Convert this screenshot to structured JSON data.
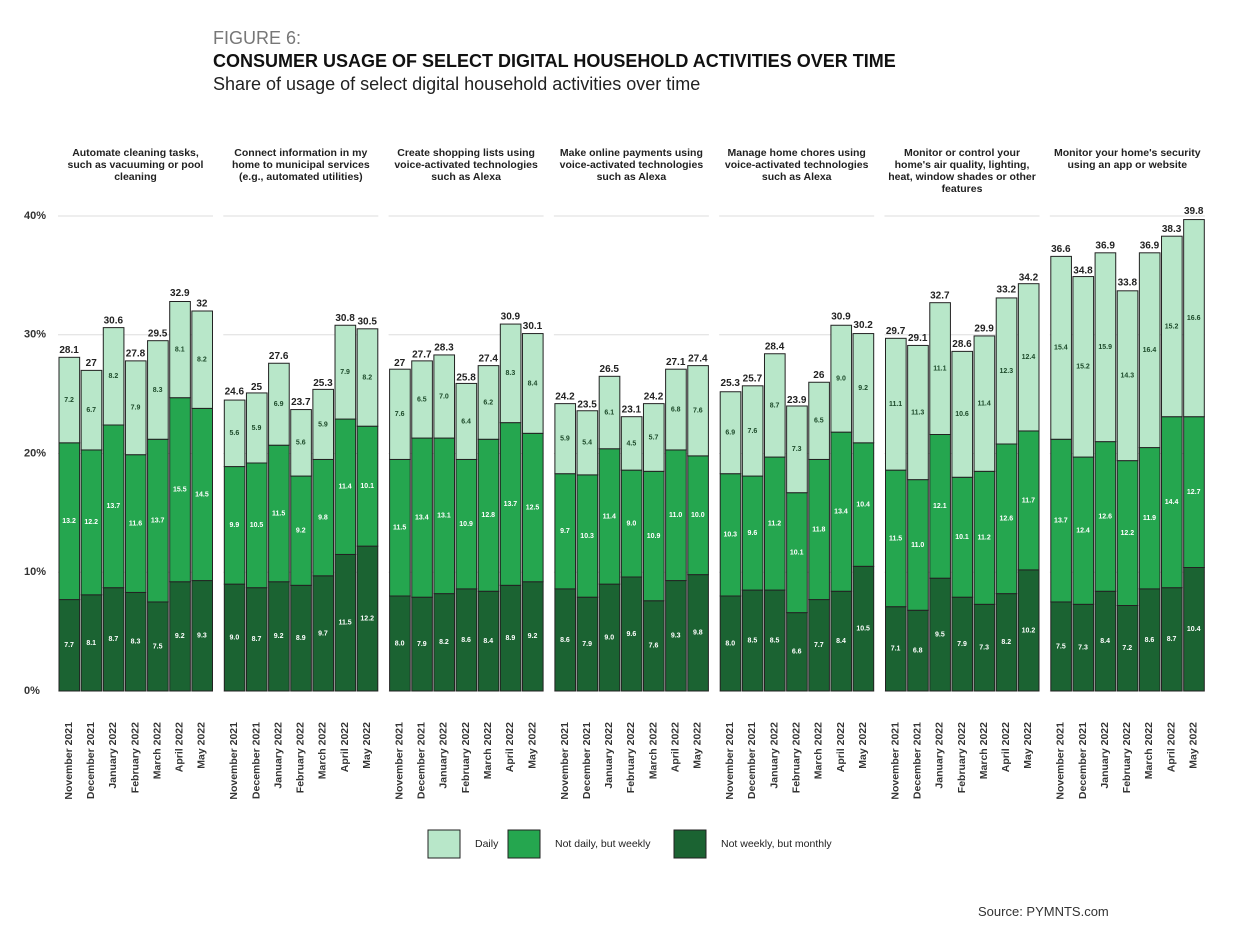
{
  "header": {
    "figure": "FIGURE 6:",
    "title": "CONSUMER USAGE OF SELECT DIGITAL HOUSEHOLD ACTIVITIES OVER TIME",
    "subtitle": "Share of usage of select digital household activities over time"
  },
  "chart_data": {
    "type": "bar",
    "stacked": true,
    "ylim": [
      0,
      40
    ],
    "yticks": [
      {
        "value": 0,
        "label": "0%"
      },
      {
        "value": 10,
        "label": "10%"
      },
      {
        "value": 20,
        "label": "20%"
      },
      {
        "value": 30,
        "label": "30%"
      },
      {
        "value": 40,
        "label": "40%"
      }
    ],
    "grid": true,
    "categories": [
      "November 2021",
      "December 2021",
      "January 2022",
      "February 2022",
      "March 2022",
      "April 2022",
      "May 2022"
    ],
    "series": [
      {
        "name": "Not weekly, but monthly",
        "color": "#1b6332"
      },
      {
        "name": "Not daily, but weekly",
        "color": "#25a64f"
      },
      {
        "name": "Daily",
        "color": "#b8e7c9"
      }
    ],
    "legend_order": [
      2,
      1,
      0
    ],
    "panels": [
      {
        "title": "Automate cleaning tasks, such as vacuuming or pool cleaning",
        "series": [
          {
            "values": [
              7.7,
              8.1,
              8.7,
              8.3,
              7.5,
              9.2,
              9.3
            ],
            "value_labels": [
              "7.7",
              "8.1",
              "8.7",
              "8.3",
              "7.5",
              "9.2",
              "9.3"
            ]
          },
          {
            "values": [
              13.2,
              12.2,
              13.7,
              11.6,
              13.7,
              15.5,
              14.5
            ],
            "value_labels": [
              "13.2",
              "12.2",
              "13.7",
              "11.6",
              "13.7",
              "15.5",
              "14.5"
            ]
          },
          {
            "values": [
              7.2,
              6.7,
              8.2,
              7.9,
              8.3,
              8.1,
              8.2
            ],
            "value_labels": [
              "7.2",
              "6.7",
              "8.2",
              "7.9",
              "8.3",
              "8.1",
              "8.2"
            ]
          }
        ],
        "totals": [
          28.1,
          27,
          30.6,
          27.8,
          29.5,
          32.9,
          32
        ]
      },
      {
        "title": "Connect information in my home to municipal services (e.g., automated utilities)",
        "series": [
          {
            "values": [
              9.0,
              8.7,
              9.2,
              8.9,
              9.7,
              11.5,
              12.2
            ],
            "value_labels": [
              "9.0",
              "8.7",
              "9.2",
              "8.9",
              "9.7",
              "11.5",
              "12.2"
            ]
          },
          {
            "values": [
              9.9,
              10.5,
              11.5,
              9.2,
              9.8,
              11.4,
              10.1
            ],
            "value_labels": [
              "9.9",
              "10.5",
              "11.5",
              "9.2",
              "9.8",
              "11.4",
              "10.1"
            ]
          },
          {
            "values": [
              5.6,
              5.9,
              6.9,
              5.6,
              5.9,
              7.9,
              8.2
            ],
            "value_labels": [
              "5.6",
              "5.9",
              "6.9",
              "5.6",
              "5.9",
              "7.9",
              "8.2"
            ]
          }
        ],
        "totals": [
          24.6,
          25,
          27.6,
          23.7,
          25.3,
          30.8,
          30.5
        ]
      },
      {
        "title": "Create shopping lists using voice-activated technologies such as Alexa",
        "series": [
          {
            "values": [
              8.0,
              7.9,
              8.2,
              8.6,
              8.4,
              8.9,
              9.2
            ],
            "value_labels": [
              "8.0",
              "7.9",
              "8.2",
              "8.6",
              "8.4",
              "8.9",
              "9.2"
            ]
          },
          {
            "values": [
              11.5,
              13.4,
              13.1,
              10.9,
              12.8,
              13.7,
              12.5
            ],
            "value_labels": [
              "11.5",
              "13.4",
              "13.1",
              "10.9",
              "12.8",
              "13.7",
              "12.5"
            ]
          },
          {
            "values": [
              7.6,
              6.5,
              7.0,
              6.4,
              6.2,
              8.3,
              8.4
            ],
            "value_labels": [
              "7.6",
              "6.5",
              "7.0",
              "6.4",
              "6.2",
              "8.3",
              "8.4"
            ]
          }
        ],
        "totals": [
          27,
          27.7,
          28.3,
          25.8,
          27.4,
          30.9,
          30.1
        ]
      },
      {
        "title": "Make online payments using voice-activated technologies such as Alexa",
        "series": [
          {
            "values": [
              8.6,
              7.9,
              9.0,
              9.6,
              7.6,
              9.3,
              9.8
            ],
            "value_labels": [
              "8.6",
              "7.9",
              "9.0",
              "9.6",
              "7.6",
              "9.3",
              "9.8"
            ]
          },
          {
            "values": [
              9.7,
              10.3,
              11.4,
              9.0,
              10.9,
              11.0,
              10.0
            ],
            "value_labels": [
              "9.7",
              "10.3",
              "11.4",
              "9.0",
              "10.9",
              "11.0",
              "10.0"
            ]
          },
          {
            "values": [
              5.9,
              5.4,
              6.1,
              4.5,
              5.7,
              6.8,
              7.6
            ],
            "value_labels": [
              "5.9",
              "5.4",
              "6.1",
              "4.5",
              "5.7",
              "6.8",
              "7.6"
            ]
          }
        ],
        "totals": [
          24.2,
          23.5,
          26.5,
          23.1,
          24.2,
          27.1,
          27.4
        ]
      },
      {
        "title": "Manage home chores using voice-activated technologies such as Alexa",
        "series": [
          {
            "values": [
              8.0,
              8.5,
              8.5,
              6.6,
              7.7,
              8.4,
              10.5
            ],
            "value_labels": [
              "8.0",
              "8.5",
              "8.5",
              "6.6",
              "7.7",
              "8.4",
              "10.5"
            ]
          },
          {
            "values": [
              10.3,
              9.6,
              11.2,
              10.1,
              11.8,
              13.4,
              10.4
            ],
            "value_labels": [
              "10.3",
              "9.6",
              "11.2",
              "10.1",
              "11.8",
              "13.4",
              "10.4"
            ]
          },
          {
            "values": [
              6.9,
              7.6,
              8.7,
              7.3,
              6.5,
              9.0,
              9.2
            ],
            "value_labels": [
              "6.9",
              "7.6",
              "8.7",
              "7.3",
              "6.5",
              "9.0",
              "9.2"
            ]
          }
        ],
        "totals": [
          25.3,
          25.7,
          28.4,
          23.9,
          26,
          30.9,
          30.2
        ]
      },
      {
        "title": "Monitor or control your home's air quality, lighting, heat, window shades or other features",
        "series": [
          {
            "values": [
              7.1,
              6.8,
              9.5,
              7.9,
              7.3,
              8.2,
              10.2
            ],
            "value_labels": [
              "7.1",
              "6.8",
              "9.5",
              "7.9",
              "7.3",
              "8.2",
              "10.2"
            ]
          },
          {
            "values": [
              11.5,
              11.0,
              12.1,
              10.1,
              11.2,
              12.6,
              11.7
            ],
            "value_labels": [
              "11.5",
              "11.0",
              "12.1",
              "10.1",
              "11.2",
              "12.6",
              "11.7"
            ]
          },
          {
            "values": [
              11.1,
              11.3,
              11.1,
              10.6,
              11.4,
              12.3,
              12.4
            ],
            "value_labels": [
              "11.1",
              "11.3",
              "11.1",
              "10.6",
              "11.4",
              "12.3",
              "12.4"
            ]
          }
        ],
        "totals": [
          29.7,
          29.1,
          32.7,
          28.6,
          29.9,
          33.2,
          34.2
        ]
      },
      {
        "title": "Monitor your home's security using an app or website",
        "series": [
          {
            "values": [
              7.5,
              7.3,
              8.4,
              7.2,
              8.6,
              8.7,
              10.4
            ],
            "value_labels": [
              "7.5",
              "7.3",
              "8.4",
              "7.2",
              "8.6",
              "8.7",
              "10.4"
            ]
          },
          {
            "values": [
              13.7,
              12.4,
              12.6,
              12.2,
              11.9,
              14.4,
              12.7
            ],
            "value_labels": [
              "13.7",
              "12.4",
              "12.6",
              "12.2",
              "11.9",
              "14.4",
              "12.7"
            ]
          },
          {
            "values": [
              15.4,
              15.2,
              15.9,
              14.3,
              16.4,
              15.2,
              16.6
            ],
            "value_labels": [
              "15.4",
              "15.2",
              "15.9",
              "14.3",
              "16.4",
              "15.2",
              "16.6"
            ]
          }
        ],
        "totals": [
          36.6,
          34.8,
          36.9,
          33.8,
          36.9,
          38.3,
          39.8
        ]
      }
    ]
  },
  "source": "Source: PYMNTS.com"
}
